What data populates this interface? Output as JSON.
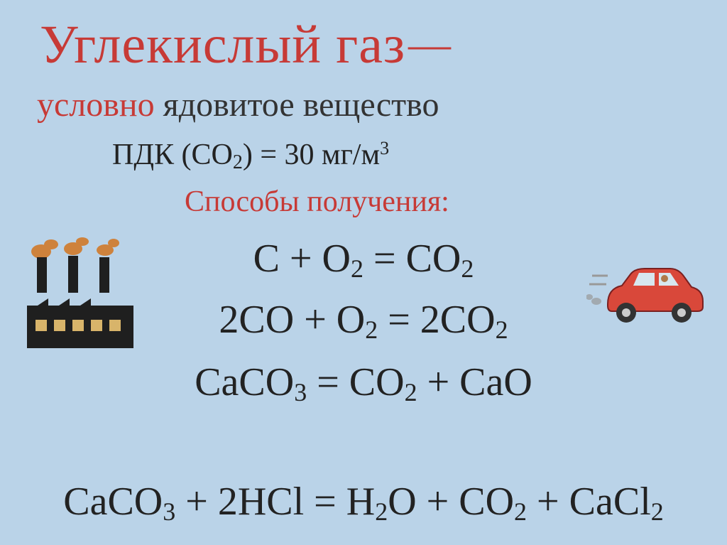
{
  "title": {
    "main": "Углекислый газ",
    "dash": "—"
  },
  "subtitle": {
    "part1": "условно",
    "part2": " ядовитое вещество"
  },
  "pdk": {
    "prefix": "ПДК (CO",
    "sub1": "2",
    "middle": ") = 30 мг/м",
    "sup1": "3"
  },
  "methods_title": "Способы получения:",
  "equations": {
    "eq1": {
      "html": "C + O<sub>2</sub> = CO<sub>2</sub>"
    },
    "eq2": {
      "html": "2CO + O<sub>2</sub> = 2CO<sub>2</sub>"
    },
    "eq3": {
      "html": "CaCO<sub>3</sub> = CO<sub>2</sub> + CaO"
    },
    "eq4": {
      "prefix": "CaCO",
      "sub1": "3",
      "mid1": " + 2HCl = H",
      "sub2": "2",
      "mid2": "O + CO",
      "sub3": "2",
      "tail": " + CaCl",
      "sub4": "2"
    }
  },
  "colors": {
    "background": "#bad3e8",
    "accent": "#c73a36",
    "text": "#222222"
  },
  "illustrations": {
    "factory": {
      "name": "factory-icon",
      "building_color": "#1f1f1f",
      "smoke_color": "#d17a2a",
      "window_color": "#d8b46a"
    },
    "car": {
      "name": "car-icon",
      "body_color": "#d9483a",
      "window_color": "#d7e7ef",
      "tire_color": "#333333",
      "exhaust_color": "#999999"
    }
  }
}
